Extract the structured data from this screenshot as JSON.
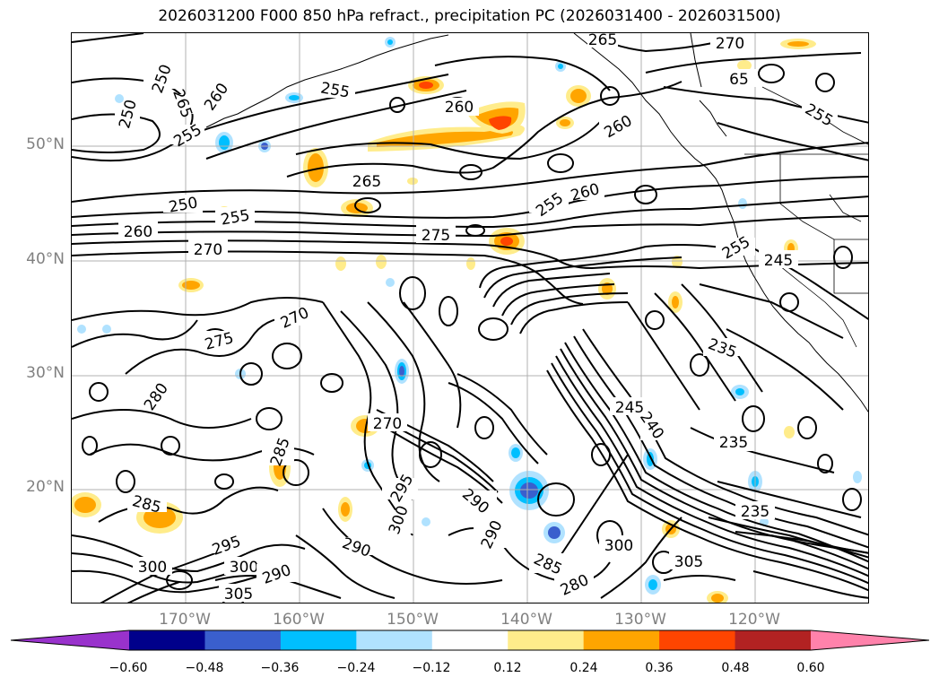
{
  "title": "2026031200 F000 850 hPa refract., precipitation PC (2026031400 - 2026031500)",
  "axes": {
    "lat_labels": [
      "50°N",
      "40°N",
      "30°N",
      "20°N"
    ],
    "lon_labels": [
      "170°W",
      "160°W",
      "150°W",
      "140°W",
      "130°W",
      "120°W"
    ]
  },
  "contour_labels": [
    "270",
    "265",
    "65",
    "255",
    "250",
    "265",
    "260",
    "250",
    "255",
    "260",
    "260",
    "265",
    "255",
    "250",
    "255",
    "260",
    "275",
    "260",
    "255",
    "270",
    "245",
    "255",
    "270",
    "275",
    "235",
    "280",
    "270",
    "285",
    "295",
    "290",
    "300",
    "285",
    "300",
    "295",
    "300",
    "290",
    "290",
    "290",
    "285",
    "280",
    "300",
    "305",
    "305",
    "245",
    "240",
    "235",
    "235"
  ],
  "colorbar": {
    "ticks": [
      "−0.60",
      "−0.48",
      "−0.36",
      "−0.24",
      "−0.12",
      "0.12",
      "0.24",
      "0.36",
      "0.48",
      "0.60"
    ],
    "colors": [
      "#9932cc",
      "#00008b",
      "#3a5fcd",
      "#00bfff",
      "#b0e2ff",
      "#ffffff",
      "#ffec8b",
      "#ffa500",
      "#ff4500",
      "#b22222",
      "#ff82ab"
    ]
  }
}
